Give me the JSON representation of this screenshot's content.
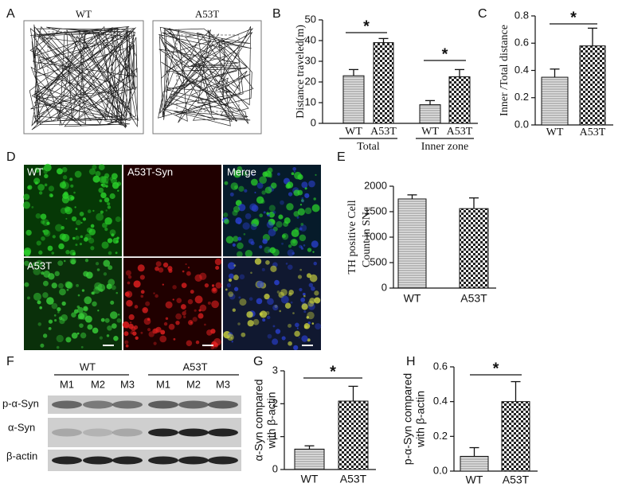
{
  "chart_data": [
    {
      "type": "bar",
      "ylabel": "Distance traveled(m)",
      "categories": [
        "WT",
        "A53T",
        "WT",
        "A53T"
      ],
      "groups": [
        "Total",
        "Inner zone"
      ],
      "values": [
        23,
        39,
        9,
        22.5
      ],
      "errors": [
        3,
        2,
        2,
        3.5
      ],
      "ylim": [
        0,
        50
      ],
      "yticks": [
        0,
        10,
        20,
        30,
        40,
        50
      ],
      "annotations": [
        "*",
        "*"
      ]
    },
    {
      "type": "bar",
      "ylabel": "Inner /Total distance",
      "categories": [
        "WT",
        "A53T"
      ],
      "values": [
        0.35,
        0.58
      ],
      "errors": [
        0.06,
        0.13
      ],
      "ylim": [
        0,
        0.8
      ],
      "yticks": [
        {
          "value": 0,
          "label": "0.0"
        },
        0.2,
        0.4,
        0.6,
        0.8
      ],
      "annotations": [
        "*"
      ]
    },
    {
      "type": "bar",
      "ylabel": [
        "TH positive Cell",
        "Count in SNc"
      ],
      "categories": [
        "WT",
        "A53T"
      ],
      "values": [
        1750,
        1560
      ],
      "errors": [
        80,
        210
      ],
      "ylim": [
        0,
        2000
      ],
      "yticks": [
        0,
        500,
        1000,
        1500,
        2000
      ]
    },
    {
      "type": "bar",
      "ylabel": [
        "α-Syn compared",
        "with β-actin"
      ],
      "categories": [
        "WT",
        "A53T"
      ],
      "values": [
        0.62,
        2.08
      ],
      "errors": [
        0.1,
        0.45
      ],
      "ylim": [
        0,
        3
      ],
      "yticks": [
        0,
        1,
        2,
        3
      ],
      "annotations": [
        "*"
      ]
    },
    {
      "type": "bar",
      "ylabel": [
        "p-α-Syn compared",
        "with β-actin"
      ],
      "categories": [
        "WT",
        "A53T"
      ],
      "values": [
        0.085,
        0.4
      ],
      "errors": [
        0.05,
        0.115
      ],
      "ylim": [
        0,
        0.6
      ],
      "yticks": [
        {
          "value": 0,
          "label": "0.0"
        },
        0.2,
        0.4,
        0.6
      ],
      "annotations": [
        "*"
      ]
    }
  ],
  "figure": {
    "panel_letters": [
      "A",
      "B",
      "C",
      "D",
      "E",
      "F",
      "G",
      "H"
    ],
    "a_labels": [
      "WT",
      "A53T"
    ],
    "d_labels": [
      "WT",
      "A53T-Syn",
      "Merge",
      "A53T"
    ],
    "f_groups": [
      "WT",
      "A53T"
    ],
    "f_lanes": [
      "M1",
      "M2",
      "M3",
      "M1",
      "M2",
      "M3"
    ],
    "f_rows": [
      "p-α-Syn",
      "α-Syn",
      "β-actin"
    ]
  }
}
